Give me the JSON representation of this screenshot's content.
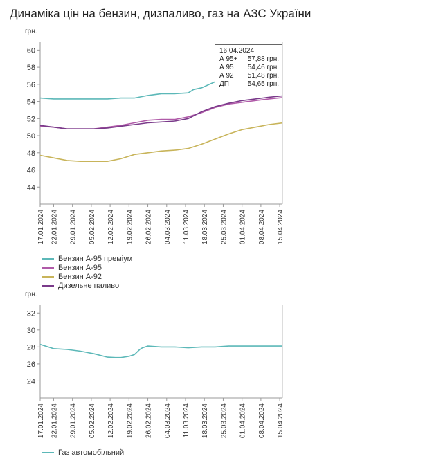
{
  "title": "Динаміка цін на бензин, дизпаливо, газ на АЗС України",
  "chart_data": [
    {
      "type": "line",
      "ylabel": "грн.",
      "ylim": [
        42,
        61
      ],
      "y_ticks": [
        44,
        46,
        48,
        50,
        52,
        54,
        56,
        58,
        60
      ],
      "x_ticks": [
        "17.01.2024",
        "22.01.2024",
        "29.01.2024",
        "05.02.2024",
        "12.02.2024",
        "19.02.2024",
        "26.02.2024",
        "04.03.2024",
        "11.03.2024",
        "18.03.2024",
        "25.03.2024",
        "01.04.2024",
        "08.04.2024",
        "15.04.2024"
      ],
      "x_day_range": [
        0,
        90
      ],
      "series": [
        {
          "name": "Бензин А-95 преміум",
          "color": "#5cb8b8",
          "x": [
            0,
            5,
            10,
            15,
            20,
            25,
            30,
            35,
            40,
            45,
            50,
            55,
            57,
            60,
            65,
            70,
            75,
            80,
            85,
            90
          ],
          "y": [
            54.4,
            54.3,
            54.3,
            54.3,
            54.3,
            54.3,
            54.4,
            54.4,
            54.7,
            54.9,
            54.9,
            55.0,
            55.4,
            55.6,
            56.3,
            56.8,
            57.2,
            57.5,
            57.8,
            57.88
          ]
        },
        {
          "name": "Бензин А-95",
          "color": "#b05aa8",
          "x": [
            0,
            5,
            10,
            15,
            20,
            25,
            30,
            35,
            40,
            45,
            50,
            55,
            60,
            65,
            70,
            75,
            80,
            85,
            90
          ],
          "y": [
            51.1,
            51.0,
            50.8,
            50.8,
            50.8,
            51.0,
            51.2,
            51.5,
            51.8,
            51.9,
            51.9,
            52.2,
            52.7,
            53.3,
            53.7,
            53.9,
            54.1,
            54.3,
            54.46
          ]
        },
        {
          "name": "Бензин А-92",
          "color": "#c8b45a",
          "x": [
            0,
            5,
            10,
            15,
            20,
            25,
            30,
            35,
            40,
            45,
            50,
            55,
            60,
            65,
            70,
            75,
            80,
            85,
            90
          ],
          "y": [
            47.7,
            47.4,
            47.1,
            47.0,
            47.0,
            47.0,
            47.3,
            47.8,
            48.0,
            48.2,
            48.3,
            48.5,
            49.0,
            49.6,
            50.2,
            50.7,
            51.0,
            51.3,
            51.48
          ]
        },
        {
          "name": "Дизельне паливо",
          "color": "#7a3a8a",
          "x": [
            0,
            5,
            10,
            15,
            20,
            25,
            30,
            35,
            40,
            45,
            50,
            55,
            60,
            65,
            70,
            75,
            80,
            85,
            90
          ],
          "y": [
            51.2,
            51.0,
            50.8,
            50.8,
            50.8,
            50.9,
            51.1,
            51.3,
            51.5,
            51.6,
            51.7,
            52.0,
            52.8,
            53.4,
            53.8,
            54.1,
            54.3,
            54.5,
            54.65
          ]
        }
      ],
      "tooltip": {
        "date": "16.04.2024",
        "rows": [
          {
            "name": "А 95+",
            "value": "57,88 грн."
          },
          {
            "name": "А 95",
            "value": "54,46 грн."
          },
          {
            "name": "А 92",
            "value": "51,48 грн."
          },
          {
            "name": "ДП",
            "value": "54,65 грн."
          }
        ]
      }
    },
    {
      "type": "line",
      "ylabel": "грн.",
      "ylim": [
        22,
        33
      ],
      "y_ticks": [
        24,
        26,
        28,
        30,
        32
      ],
      "x_ticks": [
        "17.01.2024",
        "22.01.2024",
        "29.01.2024",
        "05.02.2024",
        "12.02.2024",
        "19.02.2024",
        "26.02.2024",
        "04.03.2024",
        "11.03.2024",
        "18.03.2024",
        "25.03.2024",
        "01.04.2024",
        "08.04.2024",
        "15.04.2024"
      ],
      "x_day_range": [
        0,
        90
      ],
      "series": [
        {
          "name": "Газ автомобільний",
          "color": "#5cb8b8",
          "x": [
            0,
            3,
            5,
            10,
            15,
            20,
            25,
            28,
            30,
            33,
            35,
            37,
            38,
            40,
            45,
            50,
            55,
            60,
            65,
            70,
            75,
            80,
            85,
            90
          ],
          "y": [
            28.3,
            28.0,
            27.8,
            27.7,
            27.5,
            27.2,
            26.8,
            26.75,
            26.75,
            26.9,
            27.1,
            27.7,
            27.9,
            28.1,
            28.0,
            28.0,
            27.9,
            28.0,
            28.0,
            28.1,
            28.1,
            28.1,
            28.1,
            28.1
          ]
        }
      ]
    }
  ]
}
